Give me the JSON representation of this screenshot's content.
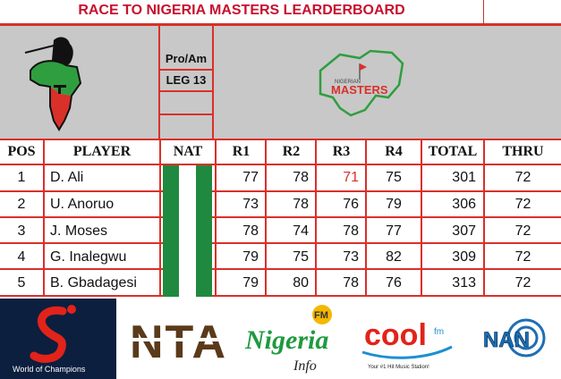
{
  "title": "RACE TO NIGERIA MASTERS LEARDERBOARD",
  "event": {
    "line1": "Pro/Am",
    "line2": "LEG 13"
  },
  "brand_logo_text": {
    "top": "NIGERIAN",
    "main": "MASTERS"
  },
  "columns": [
    "POS",
    "PLAYER",
    "NAT",
    "R1",
    "R2",
    "R3",
    "R4",
    "TOTAL",
    "THRU"
  ],
  "rows": [
    {
      "pos": "1",
      "player": "D. Ali",
      "r1": "77",
      "r2": "78",
      "r3": "71",
      "r4": "75",
      "total": "301",
      "thru": "72"
    },
    {
      "pos": "2",
      "player": "U. Anoruo",
      "r1": "73",
      "r2": "78",
      "r3": "76",
      "r4": "79",
      "total": "306",
      "thru": "72"
    },
    {
      "pos": "3",
      "player": "J. Moses",
      "r1": "78",
      "r2": "74",
      "r3": "78",
      "r4": "77",
      "total": "307",
      "thru": "72"
    },
    {
      "pos": "4",
      "player": "G. Inalegwu",
      "r1": "79",
      "r2": "75",
      "r3": "73",
      "r4": "82",
      "total": "309",
      "thru": "72"
    },
    {
      "pos": "5",
      "player": "B. Gbadagesi",
      "r1": "79",
      "r2": "80",
      "r3": "78",
      "r4": "76",
      "total": "313",
      "thru": "72"
    }
  ],
  "highlight_color": "#d9302a",
  "flag_colors": {
    "green": "#1f8a3f",
    "white": "#ffffff"
  },
  "sponsors": {
    "supersport": {
      "tagline": "World of Champions"
    },
    "nta": {
      "label": "NTA"
    },
    "nigeria_info": {
      "word": "Nigeria",
      "sub": "Info",
      "badge": "FM"
    },
    "cool": {
      "word": "cool",
      "badge": "fm",
      "tagline": "Your #1 Hit Music Station!"
    },
    "nan": {
      "label": "NAN"
    }
  }
}
